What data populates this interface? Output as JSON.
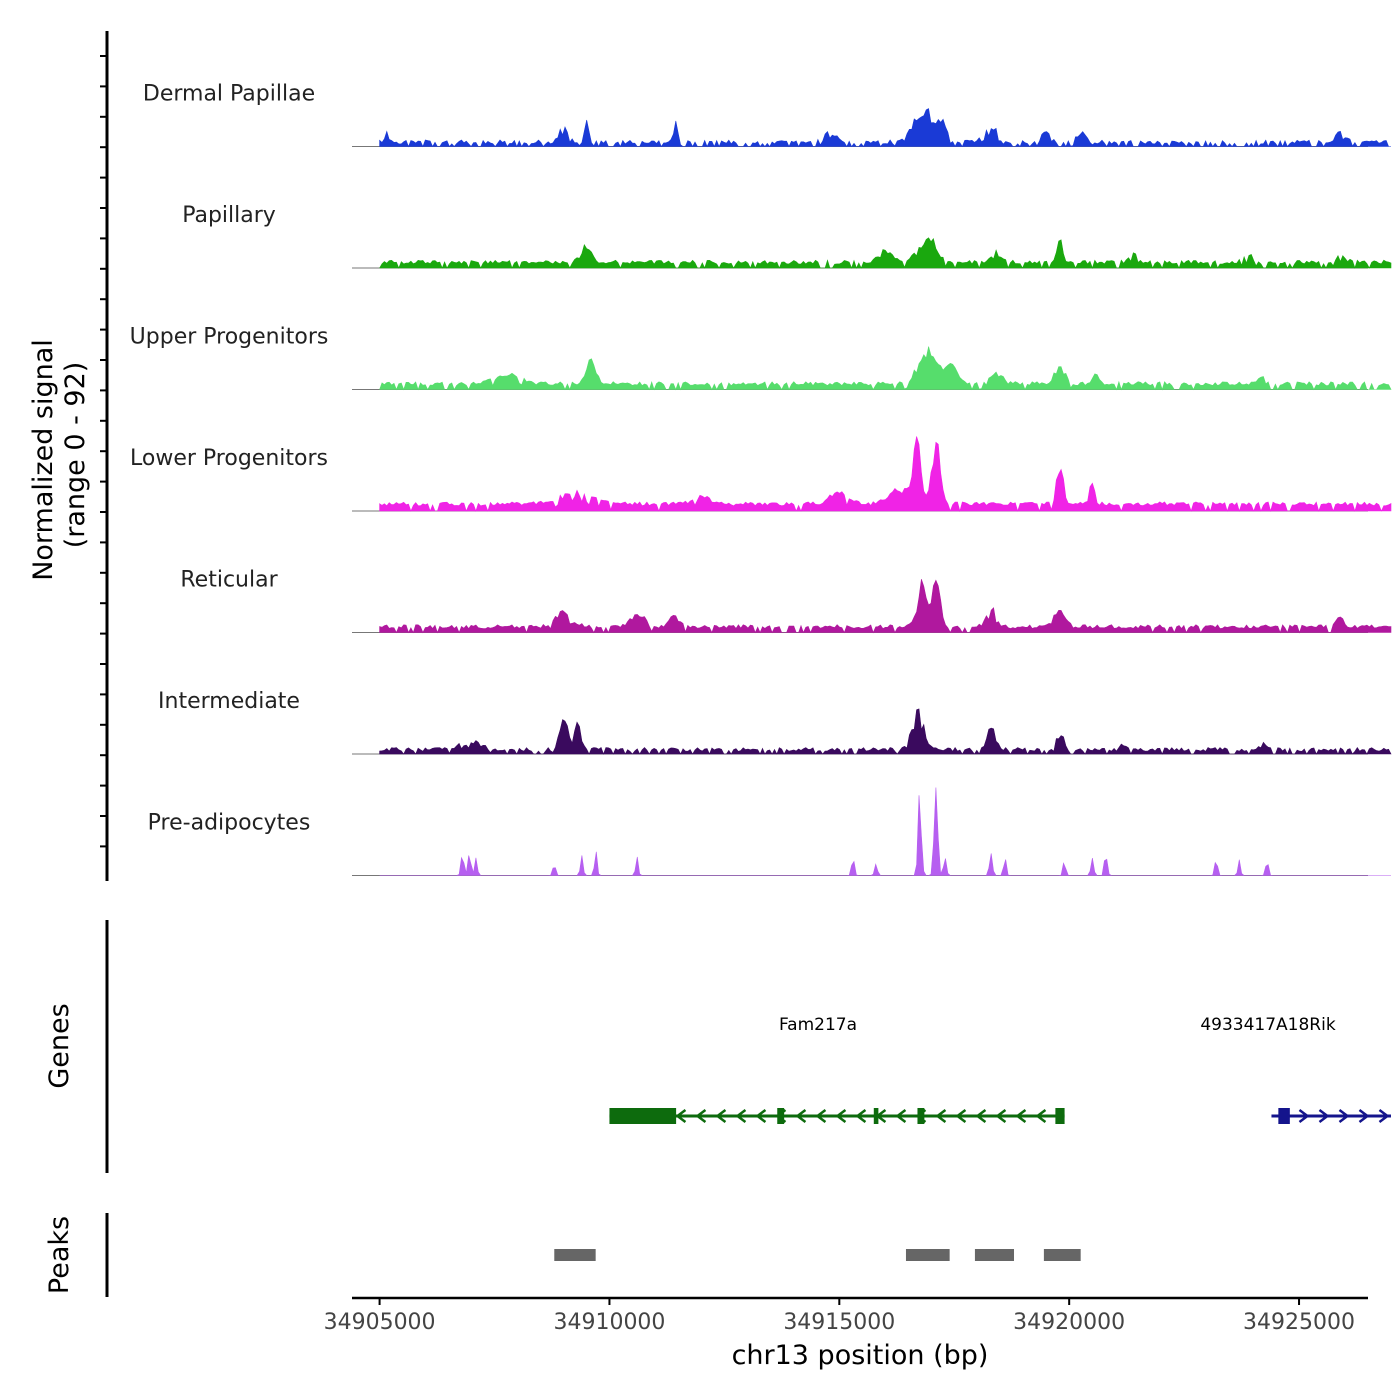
{
  "chart_data": {
    "type": "area",
    "title": "",
    "ylabel": "Normalized signal",
    "ylabel_range": "(range 0 - 92)",
    "y_range": [
      0,
      92
    ],
    "xlabel": "chr13 position (bp)",
    "chromosome": "chr13",
    "x_range": [
      34904400,
      34926500
    ],
    "x_ticks": [
      34905000,
      34910000,
      34915000,
      34920000,
      34925000
    ],
    "x_tick_labels": [
      "34905000",
      "34910000",
      "34915000",
      "34920000",
      "34925000"
    ],
    "series": [
      {
        "name": "Dermal Papillae",
        "color": "#1a3ad6",
        "baseline": 2,
        "noise": 3,
        "density": 0.7,
        "peaks": [
          [
            34905150,
            8,
            40
          ],
          [
            34909000,
            14,
            120
          ],
          [
            34909500,
            16,
            90
          ],
          [
            34911450,
            18,
            60
          ],
          [
            34914800,
            10,
            150
          ],
          [
            34916800,
            30,
            300
          ],
          [
            34917200,
            22,
            150
          ],
          [
            34918300,
            14,
            200
          ],
          [
            34919500,
            10,
            120
          ],
          [
            34920300,
            9,
            150
          ],
          [
            34925900,
            9,
            150
          ]
        ]
      },
      {
        "name": "Papillary",
        "color": "#1aa80e",
        "baseline": 3,
        "noise": 3,
        "density": 0.85,
        "peaks": [
          [
            34909500,
            16,
            150
          ],
          [
            34916000,
            10,
            200
          ],
          [
            34916900,
            24,
            250
          ],
          [
            34918400,
            8,
            150
          ],
          [
            34919800,
            20,
            80
          ],
          [
            34921400,
            12,
            100
          ],
          [
            34923900,
            6,
            150
          ],
          [
            34925900,
            6,
            150
          ]
        ]
      },
      {
        "name": "Upper Progenitors",
        "color": "#56dd6c",
        "baseline": 3,
        "noise": 3,
        "density": 0.85,
        "peaks": [
          [
            34907800,
            8,
            400
          ],
          [
            34909600,
            22,
            150
          ],
          [
            34916900,
            30,
            250
          ],
          [
            34917400,
            20,
            200
          ],
          [
            34918400,
            10,
            200
          ],
          [
            34919800,
            16,
            150
          ],
          [
            34920600,
            8,
            100
          ],
          [
            34924200,
            8,
            100
          ]
        ]
      },
      {
        "name": "Lower Progenitors",
        "color": "#f023e6",
        "baseline": 4,
        "noise": 3,
        "density": 0.9,
        "peaks": [
          [
            34909300,
            10,
            500
          ],
          [
            34912000,
            6,
            300
          ],
          [
            34916700,
            58,
            120
          ],
          [
            34917100,
            68,
            120
          ],
          [
            34916300,
            14,
            300
          ],
          [
            34919800,
            38,
            100
          ],
          [
            34920500,
            18,
            80
          ],
          [
            34915000,
            10,
            300
          ]
        ]
      },
      {
        "name": "Reticular",
        "color": "#b0189e",
        "baseline": 3,
        "noise": 3,
        "density": 0.9,
        "peaks": [
          [
            34909000,
            14,
            250
          ],
          [
            34910600,
            14,
            200
          ],
          [
            34911400,
            10,
            150
          ],
          [
            34916800,
            36,
            150
          ],
          [
            34917100,
            44,
            120
          ],
          [
            34918300,
            18,
            150
          ],
          [
            34919800,
            20,
            150
          ],
          [
            34925900,
            10,
            100
          ]
        ]
      },
      {
        "name": "Intermediate",
        "color": "#3a0a5e",
        "baseline": 2,
        "noise": 3,
        "density": 0.8,
        "peaks": [
          [
            34909000,
            34,
            130
          ],
          [
            34909300,
            36,
            90
          ],
          [
            34916700,
            34,
            180
          ],
          [
            34918300,
            22,
            120
          ],
          [
            34919800,
            16,
            100
          ],
          [
            34921200,
            8,
            80
          ],
          [
            34907000,
            8,
            300
          ],
          [
            34924200,
            6,
            80
          ]
        ]
      },
      {
        "name": "Pre-adipocytes",
        "color": "#b65ff0",
        "baseline": 0,
        "noise": 0,
        "density": 0.45,
        "peaks": [
          [
            34906800,
            20,
            40
          ],
          [
            34906950,
            25,
            40
          ],
          [
            34907100,
            18,
            40
          ],
          [
            34908800,
            14,
            40
          ],
          [
            34909400,
            18,
            40
          ],
          [
            34909700,
            22,
            40
          ],
          [
            34910600,
            16,
            40
          ],
          [
            34916750,
            82,
            50
          ],
          [
            34917100,
            92,
            50
          ],
          [
            34917300,
            20,
            40
          ],
          [
            34918300,
            26,
            40
          ],
          [
            34918600,
            18,
            40
          ],
          [
            34919900,
            14,
            40
          ],
          [
            34920500,
            22,
            40
          ],
          [
            34920800,
            24,
            40
          ],
          [
            34923200,
            16,
            40
          ],
          [
            34923700,
            14,
            40
          ],
          [
            34924300,
            16,
            40
          ],
          [
            34915300,
            16,
            40
          ],
          [
            34915800,
            12,
            40
          ]
        ]
      }
    ],
    "genes_label": "Genes",
    "genes": [
      {
        "name": "Fam217a",
        "start": 34910000,
        "end": 34919900,
        "strand": "-",
        "color": "#0d6b0d",
        "exons": [
          [
            34910000,
            34911450
          ],
          [
            34913650,
            34913800
          ],
          [
            34915750,
            34915850
          ],
          [
            34916700,
            34916850
          ],
          [
            34919700,
            34919900
          ]
        ]
      },
      {
        "name": "4933417A18Rik",
        "start": 34924400,
        "end": 34927000,
        "strand": "+",
        "color": "#14148c",
        "exons": [
          [
            34924550,
            34924800
          ]
        ]
      }
    ],
    "peaks_label": "Peaks",
    "peaks": [
      [
        34908800,
        34909700
      ],
      [
        34916450,
        34917400
      ],
      [
        34917950,
        34918800
      ],
      [
        34919450,
        34920250
      ]
    ],
    "peaks_color": "#666666"
  }
}
